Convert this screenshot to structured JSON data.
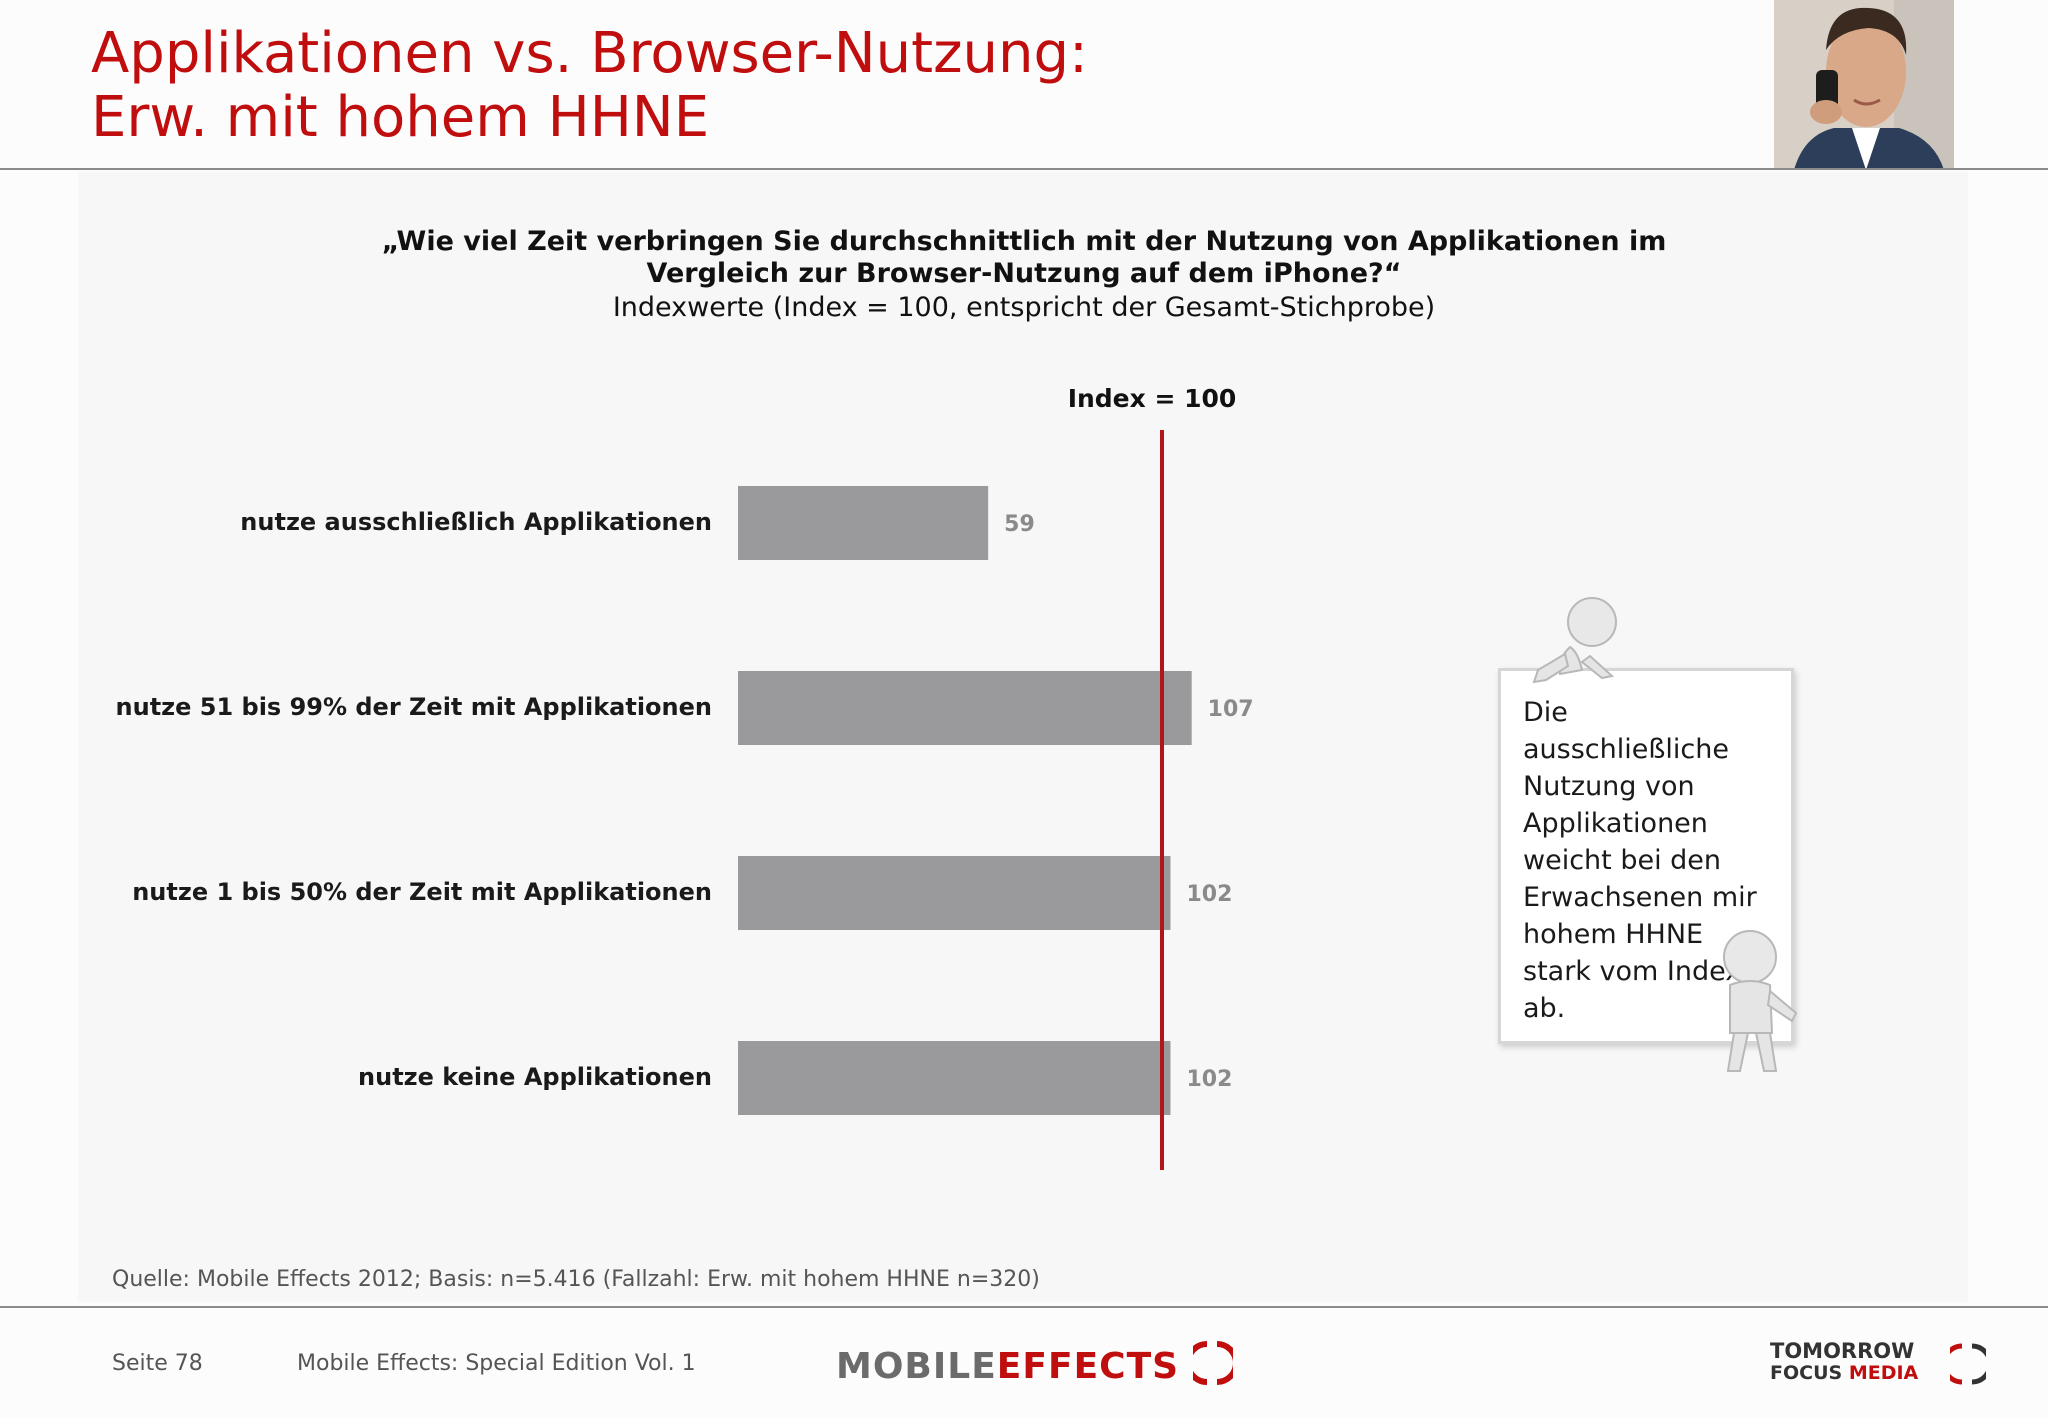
{
  "slide": {
    "title_line1": "Applikationen vs. Browser-Nutzung:",
    "title_line2": "Erw. mit hohem HHNE"
  },
  "question": {
    "line1": "„Wie viel Zeit verbringen Sie durchschnittlich mit der Nutzung von Applikationen im",
    "line2": "Vergleich zur Browser-Nutzung auf dem iPhone?“",
    "subtitle": "Indexwerte (Index = 100, entspricht der Gesamt-Stichprobe)"
  },
  "chart_data": {
    "type": "bar",
    "orientation": "horizontal",
    "reference_line": {
      "value": 100,
      "label": "Index = 100"
    },
    "categories": [
      "nutze ausschließlich Applikationen",
      "nutze 51 bis 99% der Zeit mit Applikationen",
      "nutze 1 bis 50% der Zeit mit Applikationen",
      "nutze keine Applikationen"
    ],
    "values": [
      59,
      107,
      102,
      102
    ],
    "xlim": [
      0,
      110
    ],
    "grid": false,
    "colors": {
      "bar": "#9a999b",
      "reference_line": "#b2161b",
      "value_label": "#8a8a8a"
    }
  },
  "callout": {
    "text": "Die ausschließliche Nutzung von Applikationen weicht bei den Erwachsenen mir hohem HHNE stark vom Index ab."
  },
  "footer": {
    "source": "Quelle: Mobile Effects 2012; Basis: n=5.416 (Fallzahl: Erw. mit hohem HHNE n=320)",
    "page": "Seite 78",
    "publication": "Mobile Effects: Special Edition Vol. 1",
    "logo_mobile_effects": {
      "word1": "MOBILE",
      "word2": "EFFECTS"
    },
    "logo_tfm": {
      "line1": "TOMORROW",
      "line2a": "FOCUS",
      "line2b": "MEDIA"
    }
  },
  "colors": {
    "accent": "#c00d0d"
  }
}
